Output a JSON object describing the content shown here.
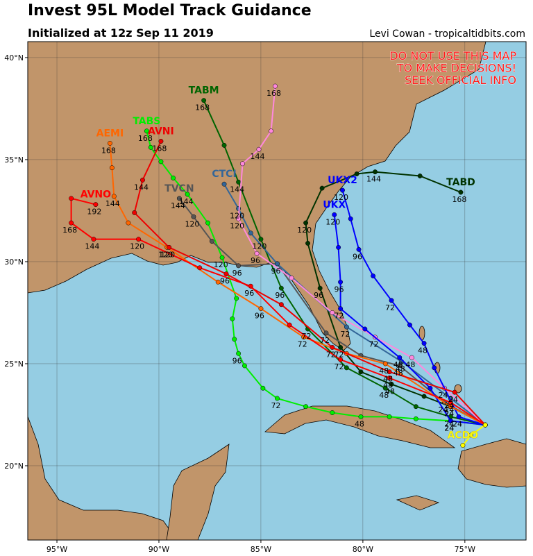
{
  "header": {
    "title": "Invest 95L Model Track Guidance",
    "subtitle": "Initialized at 12z Sep 11 2019",
    "credit": "Levi Cowan - tropicaltidbits.com"
  },
  "map": {
    "lon_range": [
      -96.43,
      -72.0
    ],
    "lat_range": [
      16.36,
      40.78
    ],
    "lon_ticks": [
      {
        "value": -95,
        "label": "95°W"
      },
      {
        "value": -90,
        "label": "90°W"
      },
      {
        "value": -85,
        "label": "85°W"
      },
      {
        "value": -80,
        "label": "80°W"
      },
      {
        "value": -75,
        "label": "75°W"
      }
    ],
    "lat_ticks": [
      {
        "value": 40,
        "label": "40°N"
      },
      {
        "value": 35,
        "label": "35°N"
      },
      {
        "value": 30,
        "label": "30°N"
      },
      {
        "value": 25,
        "label": "25°N"
      },
      {
        "value": 20,
        "label": "20°N"
      }
    ],
    "warning": [
      "DO NOT USE THIS MAP",
      "TO MAKE DECISIONS!",
      "SEEK OFFICIAL INFO"
    ],
    "tracks": [
      {
        "name": "TABS",
        "color": "#00ee00",
        "lon": [
          -74.0,
          -75.7,
          -77.4,
          -78.7,
          -80.1,
          -81.5,
          -82.8,
          -84.2,
          -84.9,
          -85.8,
          -86.1,
          -86.3,
          -86.4,
          -86.2,
          -86.9,
          -87.6,
          -88.6,
          -89.3,
          -89.9,
          -90.4,
          -90.6
        ],
        "lat": [
          22.0,
          22.2,
          22.3,
          22.4,
          22.4,
          22.6,
          22.9,
          23.3,
          23.8,
          24.9,
          25.5,
          26.2,
          27.2,
          28.2,
          30.2,
          31.9,
          33.3,
          34.1,
          34.9,
          35.6,
          36.4
        ],
        "hour_labels": [
          null,
          "24",
          null,
          null,
          "48",
          null,
          null,
          "72",
          null,
          null,
          "96",
          null,
          null,
          null,
          "120",
          null,
          "144",
          null,
          null,
          null,
          "168"
        ]
      },
      {
        "name": "TABM",
        "color": "#006400",
        "lon": [
          -74.0,
          -75.7,
          -77.4,
          -78.9,
          -80.8,
          -82.7,
          -84.0,
          -85.0,
          -86.1,
          -86.8,
          -87.8
        ],
        "lat": [
          22.0,
          22.4,
          22.9,
          23.8,
          24.8,
          26.7,
          28.7,
          31.1,
          33.9,
          35.7,
          37.9
        ],
        "hour_labels": [
          null,
          "24",
          null,
          "48",
          null,
          "72",
          "96",
          "120",
          "144",
          null,
          "168"
        ]
      },
      {
        "name": "TABD",
        "color": "#003300",
        "lon": [
          -74.0,
          -75.7,
          -77.0,
          -78.6,
          -80.1,
          -81.1,
          -82.1,
          -82.7,
          -82.8,
          -82.0,
          -80.3,
          -79.4,
          -77.2,
          -75.2
        ],
        "lat": [
          22.0,
          22.9,
          23.4,
          24.0,
          24.6,
          25.8,
          28.7,
          30.9,
          31.9,
          33.6,
          34.3,
          34.4,
          34.2,
          33.4
        ],
        "hour_labels": [
          null,
          "24",
          null,
          "48",
          null,
          "72",
          "96",
          null,
          "120",
          null,
          null,
          "144",
          null,
          "168"
        ]
      },
      {
        "name": "TVCN",
        "color": "#555555",
        "lon": [
          -74.0,
          -76.0,
          -78.2,
          -80.1,
          -81.8,
          -84.2,
          -86.1,
          -87.4,
          -88.3,
          -89.0
        ],
        "lat": [
          22.0,
          23.1,
          24.9,
          25.4,
          26.5,
          29.9,
          29.8,
          31.0,
          32.2,
          33.1
        ],
        "hour_labels": [
          null,
          "24",
          "48",
          null,
          "72",
          null,
          "96",
          null,
          "120",
          "144"
        ]
      },
      {
        "name": "CTCI",
        "color": "#336699",
        "lon": [
          -74.0,
          -75.7,
          -78.1,
          -80.8,
          -84.2,
          -85.5,
          -86.1,
          -86.8
        ],
        "lat": [
          22.0,
          23.3,
          25.1,
          26.8,
          29.9,
          31.4,
          32.6,
          33.8
        ],
        "hour_labels": [
          null,
          "24",
          "48",
          "72",
          "96",
          null,
          "120",
          null
        ]
      },
      {
        "color": "#ff88dd",
        "lon": [
          -74.0,
          -76.0,
          -77.6,
          -79.4,
          -81.5,
          -83.5,
          -85.2,
          -86.1,
          -85.9,
          -85.1,
          -84.5,
          -84.3
        ],
        "lat": [
          22.0,
          23.8,
          25.3,
          26.3,
          27.5,
          29.2,
          30.4,
          32.1,
          34.8,
          35.5,
          36.4,
          38.6
        ],
        "hour_labels": [
          null,
          "24",
          "48",
          "72",
          null,
          null,
          "96",
          "120",
          null,
          "144",
          null,
          "168"
        ]
      },
      {
        "name": "UKX",
        "color": "#0000ff",
        "lon": [
          -74.0,
          -75.7,
          -76.7,
          -78.2,
          -79.9,
          -81.1,
          -81.1,
          -81.2,
          -81.4
        ],
        "lat": [
          22.0,
          22.2,
          23.8,
          25.3,
          26.7,
          27.7,
          29.0,
          30.7,
          32.3
        ],
        "hour_labels": [
          null,
          "24",
          null,
          "48",
          null,
          "72",
          "96",
          null,
          "120"
        ]
      },
      {
        "name": "UKX2",
        "color": "#0000ff",
        "lon": [
          -74.0,
          -75.3,
          -76.5,
          -77.0,
          -77.7,
          -78.6,
          -79.5,
          -80.2,
          -80.6,
          -81.0
        ],
        "lat": [
          22.0,
          22.4,
          24.8,
          26.0,
          26.9,
          28.1,
          29.3,
          30.6,
          32.1,
          33.5
        ],
        "hour_labels": [
          null,
          "24",
          null,
          "48",
          null,
          "72",
          null,
          "96",
          null,
          "120"
        ]
      },
      {
        "name": "AEMI",
        "color": "#ff6600",
        "lon": [
          -74.0,
          -75.7,
          -78.9,
          -80.8,
          -82.9,
          -85.0,
          -87.1,
          -89.6,
          -91.5,
          -92.2,
          -92.3,
          -92.4
        ],
        "lat": [
          22.0,
          22.9,
          25.0,
          25.5,
          26.3,
          27.7,
          29.0,
          30.7,
          31.9,
          33.2,
          34.6,
          35.8
        ],
        "hour_labels": [
          null,
          "24",
          "48",
          null,
          "72",
          "96",
          null,
          "120",
          null,
          "144",
          null,
          "168"
        ]
      },
      {
        "name": "AVNO",
        "color": "#ff0000",
        "lon": [
          -74.0,
          -75.7,
          -78.7,
          -81.1,
          -83.6,
          -85.5,
          -88.0,
          -91.0,
          -93.2,
          -94.3,
          -94.3,
          -93.1
        ],
        "lat": [
          22.0,
          23.1,
          24.3,
          25.2,
          26.9,
          28.8,
          29.7,
          31.1,
          31.1,
          31.9,
          33.1,
          32.8
        ],
        "hour_labels": [
          null,
          "24",
          "48",
          "72",
          null,
          "96",
          null,
          "120",
          "144",
          "168",
          null,
          "192"
        ]
      },
      {
        "name": "AVNI",
        "color": "#ee0000",
        "lon": [
          -74.0,
          -75.5,
          -78.7,
          -81.5,
          -84.0,
          -86.7,
          -89.5,
          -91.2,
          -90.8,
          -89.9
        ],
        "lat": [
          22.0,
          23.6,
          24.6,
          25.8,
          27.9,
          29.4,
          30.7,
          32.4,
          34.0,
          35.9
        ],
        "hour_labels": [
          null,
          "24",
          "48",
          "72",
          null,
          "96",
          "120",
          null,
          "144",
          "168"
        ]
      },
      {
        "name": "ACDO",
        "color": "#ffff00",
        "lon": [
          -74.0,
          -74.7,
          -75.1
        ],
        "lat": [
          22.0,
          21.5,
          21.0
        ],
        "hour_labels": [
          null,
          null,
          null
        ]
      }
    ]
  }
}
